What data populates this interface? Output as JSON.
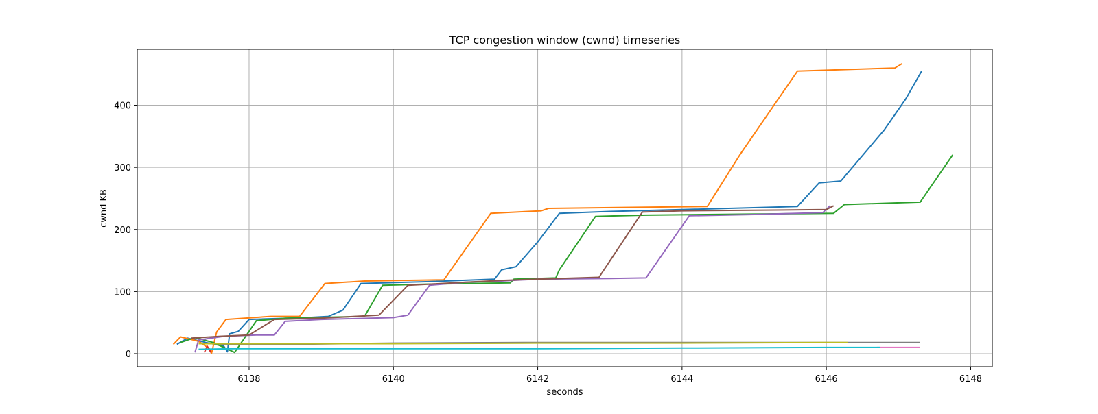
{
  "chart_data": {
    "type": "line",
    "title": "TCP congestion window (cwnd) timeseries",
    "xlabel": "seconds",
    "ylabel": "cwnd KB",
    "xlim": [
      6136.45,
      6148.3
    ],
    "ylim": [
      -21,
      490
    ],
    "xticks": [
      6138,
      6140,
      6142,
      6144,
      6146,
      6148
    ],
    "yticks": [
      0,
      100,
      200,
      300,
      400
    ],
    "grid": true,
    "legend": "none",
    "series": [
      {
        "color": "#1f77b4",
        "points": [
          [
            6137.0,
            15
          ],
          [
            6137.15,
            25
          ],
          [
            6137.4,
            18
          ],
          [
            6137.65,
            12
          ],
          [
            6137.7,
            3
          ],
          [
            6137.73,
            32
          ],
          [
            6137.85,
            36
          ],
          [
            6138.0,
            55
          ],
          [
            6138.8,
            58
          ],
          [
            6139.1,
            60
          ],
          [
            6139.3,
            70
          ],
          [
            6139.55,
            113
          ],
          [
            6140.5,
            116
          ],
          [
            6141.4,
            120
          ],
          [
            6141.5,
            135
          ],
          [
            6141.7,
            140
          ],
          [
            6142.0,
            180
          ],
          [
            6142.3,
            226
          ],
          [
            6143.0,
            229
          ],
          [
            6144.0,
            232
          ],
          [
            6145.6,
            237
          ],
          [
            6145.9,
            275
          ],
          [
            6146.2,
            278
          ],
          [
            6146.8,
            360
          ],
          [
            6147.1,
            410
          ],
          [
            6147.32,
            455
          ]
        ]
      },
      {
        "color": "#ff7f0e",
        "points": [
          [
            6136.95,
            15
          ],
          [
            6137.05,
            27
          ],
          [
            6137.3,
            20
          ],
          [
            6137.45,
            8
          ],
          [
            6137.48,
            1
          ],
          [
            6137.55,
            35
          ],
          [
            6137.68,
            55
          ],
          [
            6138.3,
            60
          ],
          [
            6138.7,
            60
          ],
          [
            6139.05,
            113
          ],
          [
            6139.6,
            117
          ],
          [
            6140.7,
            119
          ],
          [
            6141.35,
            226
          ],
          [
            6142.05,
            230
          ],
          [
            6142.15,
            234
          ],
          [
            6144.35,
            237
          ],
          [
            6144.8,
            320
          ],
          [
            6145.6,
            455
          ],
          [
            6146.95,
            460
          ],
          [
            6147.05,
            467
          ]
        ]
      },
      {
        "color": "#2ca02c",
        "points": [
          [
            6137.05,
            18
          ],
          [
            6137.25,
            26
          ],
          [
            6137.5,
            18
          ],
          [
            6137.8,
            2
          ],
          [
            6138.1,
            53
          ],
          [
            6138.5,
            57
          ],
          [
            6139.6,
            60
          ],
          [
            6139.85,
            110
          ],
          [
            6140.5,
            112
          ],
          [
            6141.62,
            114
          ],
          [
            6141.67,
            120
          ],
          [
            6142.25,
            122
          ],
          [
            6142.3,
            135
          ],
          [
            6142.8,
            221
          ],
          [
            6143.5,
            223
          ],
          [
            6146.1,
            226
          ],
          [
            6146.25,
            240
          ],
          [
            6147.3,
            244
          ],
          [
            6147.75,
            320
          ]
        ]
      },
      {
        "color": "#d62728",
        "points": [
          [
            6137.38,
            2
          ],
          [
            6137.42,
            12
          ],
          [
            6137.47,
            2
          ]
        ]
      },
      {
        "color": "#9467bd",
        "points": [
          [
            6137.25,
            2
          ],
          [
            6137.3,
            22
          ],
          [
            6137.65,
            28
          ],
          [
            6138.1,
            30
          ],
          [
            6138.35,
            30
          ],
          [
            6138.5,
            52
          ],
          [
            6139.0,
            55
          ],
          [
            6140.0,
            58
          ],
          [
            6140.2,
            62
          ],
          [
            6140.5,
            110
          ],
          [
            6141.0,
            115
          ],
          [
            6141.5,
            117
          ],
          [
            6142.0,
            120
          ],
          [
            6143.0,
            121
          ],
          [
            6143.5,
            122
          ],
          [
            6144.1,
            222
          ],
          [
            6145.0,
            224
          ],
          [
            6145.95,
            227
          ],
          [
            6146.05,
            238
          ]
        ]
      },
      {
        "color": "#8c564b",
        "points": [
          [
            6137.2,
            25
          ],
          [
            6137.6,
            28
          ],
          [
            6138.0,
            30
          ],
          [
            6138.35,
            55
          ],
          [
            6139.0,
            57
          ],
          [
            6139.8,
            62
          ],
          [
            6140.2,
            110
          ],
          [
            6141.0,
            115
          ],
          [
            6141.5,
            118
          ],
          [
            6142.0,
            120
          ],
          [
            6142.85,
            123
          ],
          [
            6143.45,
            228
          ],
          [
            6144.0,
            230
          ],
          [
            6146.0,
            232
          ],
          [
            6146.1,
            238
          ]
        ]
      },
      {
        "color": "#e377c2",
        "points": [
          [
            6146.7,
            10
          ],
          [
            6147.3,
            10
          ]
        ]
      },
      {
        "color": "#7f7f7f",
        "points": [
          [
            6137.6,
            15
          ],
          [
            6138.6,
            15
          ],
          [
            6140.0,
            17
          ],
          [
            6142.0,
            18
          ],
          [
            6146.0,
            18
          ],
          [
            6147.3,
            18
          ]
        ]
      },
      {
        "color": "#bcbd22",
        "points": [
          [
            6137.3,
            16
          ],
          [
            6137.6,
            16
          ],
          [
            6138.5,
            16
          ],
          [
            6140.0,
            16
          ],
          [
            6142.0,
            17
          ],
          [
            6144.0,
            17
          ],
          [
            6146.0,
            18
          ],
          [
            6146.3,
            18
          ]
        ]
      },
      {
        "color": "#17becf",
        "points": [
          [
            6137.3,
            7
          ],
          [
            6137.8,
            8
          ],
          [
            6139.0,
            8
          ],
          [
            6140.5,
            8
          ],
          [
            6142.0,
            8
          ],
          [
            6144.0,
            9
          ],
          [
            6146.0,
            10
          ],
          [
            6146.75,
            10
          ]
        ]
      }
    ]
  }
}
